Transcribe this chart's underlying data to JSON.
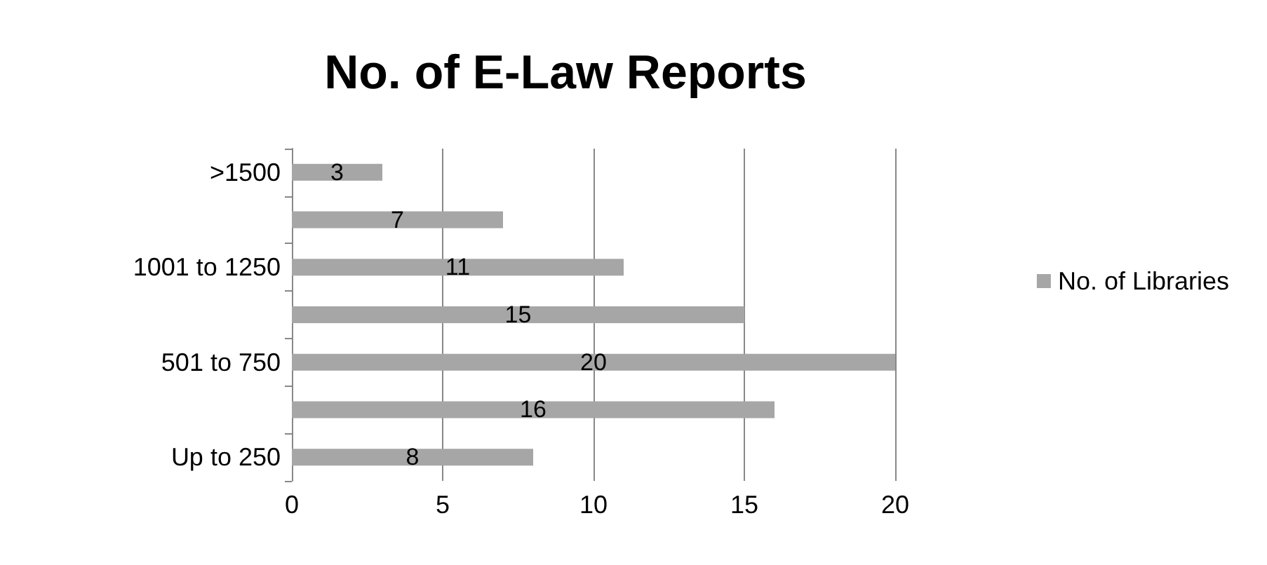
{
  "chart_data": {
    "type": "bar",
    "title": "No. of E-Law Reports",
    "orientation": "horizontal",
    "categories": [
      ">1500",
      null,
      "1001 to 1250",
      null,
      "501 to 750",
      null,
      "Up to 250"
    ],
    "series": [
      {
        "name": "No. of Libraries",
        "color": "#a6a6a6",
        "values": [
          3,
          7,
          11,
          15,
          20,
          16,
          8
        ]
      }
    ],
    "xlim": [
      0,
      20
    ],
    "xticks": [
      0,
      5,
      10,
      15,
      20
    ],
    "grid": "x",
    "legend": "right",
    "data_labels": true
  }
}
